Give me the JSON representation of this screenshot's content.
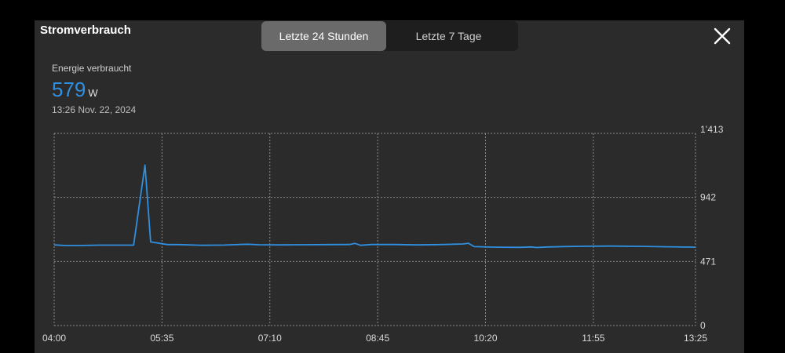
{
  "header": {
    "title": "Stromverbrauch",
    "tabs": [
      {
        "label": "Letzte 24 Stunden",
        "active": true
      },
      {
        "label": "Letzte 7 Tage",
        "active": false
      }
    ],
    "close_icon": "close-icon"
  },
  "metric": {
    "label": "Energie verbraucht",
    "value": "579",
    "unit": "W",
    "timestamp": "13:26  Nov. 22, 2024"
  },
  "colors": {
    "accent": "#2f8fe0",
    "panel": "#2b2b2b",
    "grid": "#8a8a8a"
  },
  "chart_data": {
    "type": "line",
    "title": "",
    "xlabel": "",
    "ylabel": "",
    "x_tick_labels": [
      "04:00",
      "05:35",
      "07:10",
      "08:45",
      "10:20",
      "11:55",
      "13:25"
    ],
    "y_tick_labels": [
      "0",
      "471",
      "942",
      "1’413"
    ],
    "ylim": [
      0,
      1413
    ],
    "xlim": [
      "04:00",
      "13:25"
    ],
    "grid": true,
    "series": [
      {
        "color": "#2f8fe0",
        "points": [
          [
            "04:00",
            593
          ],
          [
            "04:10",
            588
          ],
          [
            "04:20",
            588
          ],
          [
            "04:40",
            591
          ],
          [
            "05:00",
            591
          ],
          [
            "05:10",
            591
          ],
          [
            "05:20",
            1180
          ],
          [
            "05:25",
            615
          ],
          [
            "05:40",
            595
          ],
          [
            "05:50",
            595
          ],
          [
            "06:10",
            590
          ],
          [
            "06:30",
            592
          ],
          [
            "06:50",
            598
          ],
          [
            "07:00",
            594
          ],
          [
            "07:20",
            593
          ],
          [
            "07:40",
            594
          ],
          [
            "08:00",
            595
          ],
          [
            "08:20",
            596
          ],
          [
            "08:25",
            604
          ],
          [
            "08:30",
            590
          ],
          [
            "08:40",
            596
          ],
          [
            "09:00",
            596
          ],
          [
            "09:20",
            593
          ],
          [
            "09:40",
            595
          ],
          [
            "10:00",
            600
          ],
          [
            "10:05",
            605
          ],
          [
            "10:10",
            580
          ],
          [
            "10:30",
            576
          ],
          [
            "10:50",
            575
          ],
          [
            "11:00",
            578
          ],
          [
            "11:05",
            574
          ],
          [
            "11:15",
            578
          ],
          [
            "11:30",
            581
          ],
          [
            "11:50",
            583
          ],
          [
            "12:10",
            584
          ],
          [
            "12:40",
            582
          ],
          [
            "13:00",
            579
          ],
          [
            "13:20",
            577
          ],
          [
            "13:25",
            576
          ]
        ]
      }
    ]
  }
}
